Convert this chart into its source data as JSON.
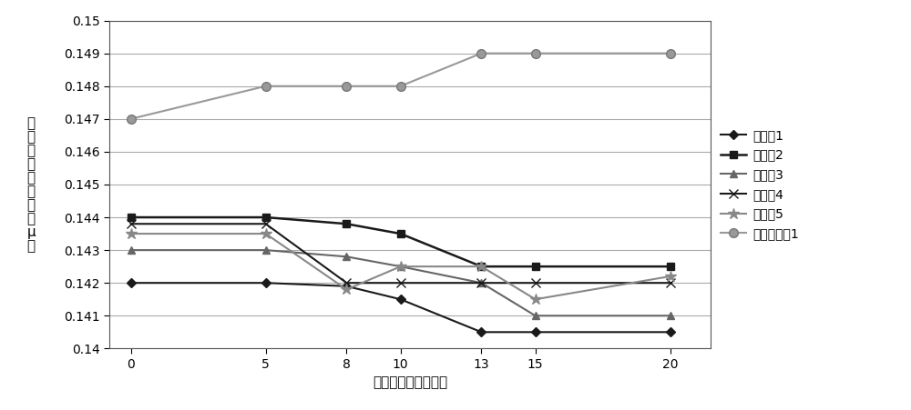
{
  "x": [
    0,
    5,
    8,
    10,
    13,
    15,
    20
  ],
  "series": {
    "实施例1": [
      0.142,
      0.142,
      0.1419,
      0.1415,
      0.1405,
      0.1405,
      0.1405
    ],
    "实施例2": [
      0.144,
      0.144,
      0.1438,
      0.1435,
      0.1425,
      0.1425,
      0.1425
    ],
    "实施例3": [
      0.143,
      0.143,
      0.1428,
      0.1425,
      0.142,
      0.141,
      0.141
    ],
    "实施例4": [
      0.1438,
      0.1438,
      0.142,
      0.142,
      0.142,
      0.142,
      0.142
    ],
    "实施例5": [
      0.1435,
      0.1435,
      0.1418,
      0.1425,
      0.1425,
      0.1415,
      0.1422
    ],
    "对比实施例1": [
      0.147,
      0.148,
      0.148,
      0.148,
      0.149,
      0.149,
      0.149
    ]
  },
  "series_order": [
    "实施例1",
    "实施例2",
    "实施例3",
    "实施例4",
    "实施例5",
    "对比实施例1"
  ],
  "line_configs": {
    "实施例1": {
      "color": "#1a1a1a",
      "marker": "D",
      "markersize": 5,
      "linewidth": 1.5,
      "markerfacecolor": "#1a1a1a",
      "markeredgecolor": "#1a1a1a"
    },
    "实施例2": {
      "color": "#1a1a1a",
      "marker": "s",
      "markersize": 6,
      "linewidth": 1.8,
      "markerfacecolor": "#1a1a1a",
      "markeredgecolor": "#1a1a1a"
    },
    "实施例3": {
      "color": "#666666",
      "marker": "^",
      "markersize": 6,
      "linewidth": 1.5,
      "markerfacecolor": "#666666",
      "markeredgecolor": "#666666"
    },
    "实施例4": {
      "color": "#1a1a1a",
      "marker": "x",
      "markersize": 7,
      "linewidth": 1.5,
      "markerfacecolor": "#1a1a1a",
      "markeredgecolor": "#1a1a1a"
    },
    "实施例5": {
      "color": "#888888",
      "marker": "*",
      "markersize": 9,
      "linewidth": 1.5,
      "markerfacecolor": "#888888",
      "markeredgecolor": "#888888"
    },
    "对比实施例1": {
      "color": "#999999",
      "marker": "o",
      "markersize": 7,
      "linewidth": 1.5,
      "markerfacecolor": "#999999",
      "markeredgecolor": "#777777"
    }
  },
  "ylabel_chars": [
    "摩",
    "擦",
    "系",
    "数",
    "（",
    "单",
    "位",
    "：",
    "μ",
    "）"
  ],
  "xlabel": "时间（单位：分钟）",
  "ylim": [
    0.14,
    0.15
  ],
  "yticks": [
    0.14,
    0.141,
    0.142,
    0.143,
    0.144,
    0.145,
    0.146,
    0.147,
    0.148,
    0.149,
    0.15
  ],
  "ytick_labels": [
    "0.14",
    "0.141",
    "0.142",
    "0.143",
    "0.144",
    "0.145",
    "0.146",
    "0.147",
    "0.148",
    "0.149",
    "0.15"
  ],
  "xticks": [
    0,
    5,
    8,
    10,
    13,
    15,
    20
  ],
  "background_color": "#ffffff",
  "grid_color": "#aaaaaa",
  "figsize": [
    10.0,
    4.51
  ],
  "dpi": 100
}
